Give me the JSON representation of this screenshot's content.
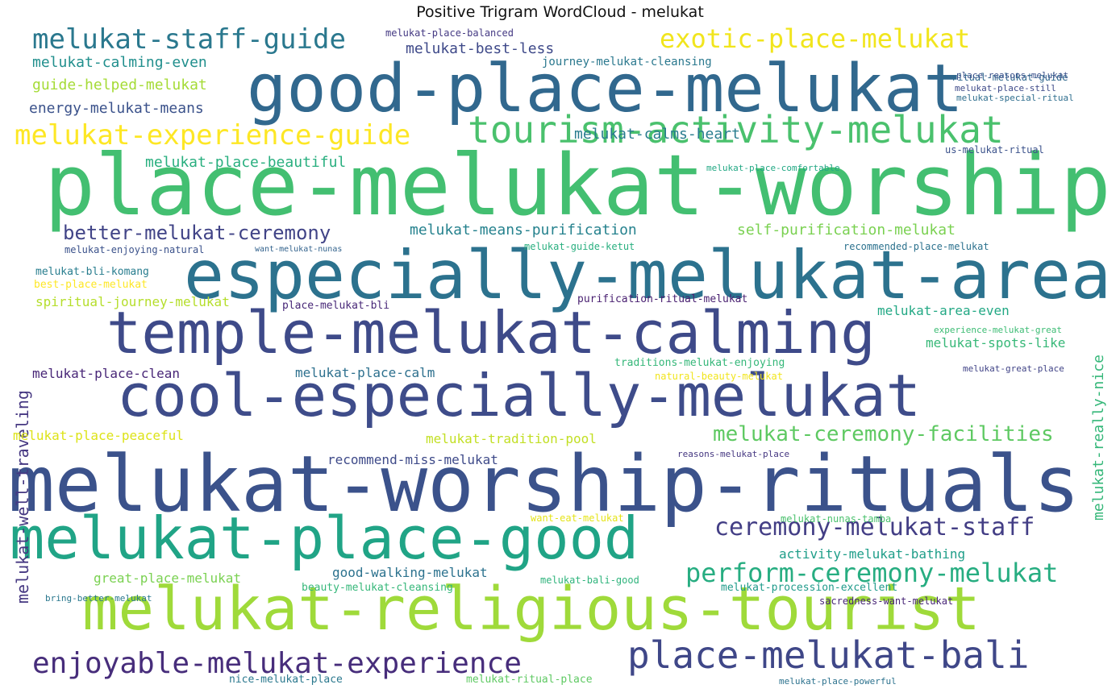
{
  "title": "Positive Trigram WordCloud - melukat",
  "words": [
    {
      "text": "place-melukat-worship",
      "color": "#43bf71"
    },
    {
      "text": "melukat-worship-rituals",
      "color": "#3b528b"
    },
    {
      "text": "especially-melukat-area",
      "color": "#2c728e"
    },
    {
      "text": "good-place-melukat",
      "color": "#31688e"
    },
    {
      "text": "melukat-religious-tourist",
      "color": "#9fda3a"
    },
    {
      "text": "temple-melukat-calming",
      "color": "#3e4a89"
    },
    {
      "text": "cool-especially-melukat",
      "color": "#3e4c8a"
    },
    {
      "text": "melukat-place-good",
      "color": "#20a486"
    },
    {
      "text": "tourism-activity-melukat",
      "color": "#4ac16d"
    },
    {
      "text": "place-melukat-bali",
      "color": "#3f4788"
    },
    {
      "text": "enjoyable-melukat-experience",
      "color": "#472d7b"
    },
    {
      "text": "melukat-experience-guide",
      "color": "#fde725"
    },
    {
      "text": "melukat-staff-guide",
      "color": "#2a788e"
    },
    {
      "text": "exotic-place-melukat",
      "color": "#f1e51d"
    },
    {
      "text": "perform-ceremony-melukat",
      "color": "#27ad81"
    },
    {
      "text": "ceremony-melukat-staff",
      "color": "#433e85"
    },
    {
      "text": "melukat-ceremony-facilities",
      "color": "#5ec962"
    },
    {
      "text": "better-melukat-ceremony",
      "color": "#414487"
    },
    {
      "text": "melukat-well-traveling",
      "color": "#453781"
    },
    {
      "text": "melukat-really-nice",
      "color": "#35b779"
    },
    {
      "text": "melukat-calming-even",
      "color": "#218f8d"
    },
    {
      "text": "guide-helped-melukat",
      "color": "#a5db36"
    },
    {
      "text": "energy-melukat-means",
      "color": "#3b528b"
    },
    {
      "text": "melukat-best-less",
      "color": "#3e4989"
    },
    {
      "text": "melukat-calms-heart",
      "color": "#287c8e"
    },
    {
      "text": "melukat-place-beautiful",
      "color": "#29af7f"
    },
    {
      "text": "melukat-means-purification",
      "color": "#26828e"
    },
    {
      "text": "self-purification-melukat",
      "color": "#7ad151"
    },
    {
      "text": "spiritual-journey-melukat",
      "color": "#b5de2b"
    },
    {
      "text": "melukat-place-clean",
      "color": "#482677"
    },
    {
      "text": "melukat-place-calm",
      "color": "#2d708e"
    },
    {
      "text": "melukat-area-even",
      "color": "#22a884"
    },
    {
      "text": "melukat-spots-like",
      "color": "#37b878"
    },
    {
      "text": "melukat-place-peaceful",
      "color": "#dde318"
    },
    {
      "text": "melukat-tradition-pool",
      "color": "#c2df23"
    },
    {
      "text": "recommend-miss-melukat",
      "color": "#3e4a89"
    },
    {
      "text": "activity-melukat-bathing",
      "color": "#1f9e89"
    },
    {
      "text": "great-place-melukat",
      "color": "#7ad151"
    },
    {
      "text": "good-walking-melukat",
      "color": "#2c728e"
    },
    {
      "text": "journey-melukat-cleansing",
      "color": "#2a788e"
    },
    {
      "text": "melukat-place-balanced",
      "color": "#443983"
    },
    {
      "text": "ritual-melukat-guide",
      "color": "#31688e"
    },
    {
      "text": "place-reasons-melukat",
      "color": "#3b528b"
    },
    {
      "text": "melukat-place-still",
      "color": "#3e4a89"
    },
    {
      "text": "melukat-special-ritual",
      "color": "#2e6e8e"
    },
    {
      "text": "us-melukat-ritual",
      "color": "#3b528b"
    },
    {
      "text": "melukat-place-comfortable",
      "color": "#22a884"
    },
    {
      "text": "melukat-enjoying-natural",
      "color": "#3b528b"
    },
    {
      "text": "want-melukat-nunas",
      "color": "#33638d"
    },
    {
      "text": "melukat-guide-ketut",
      "color": "#29af7f"
    },
    {
      "text": "recommended-place-melukat",
      "color": "#2c728e"
    },
    {
      "text": "melukat-bli-komang",
      "color": "#287d8e"
    },
    {
      "text": "best-place-melukat",
      "color": "#fde725"
    },
    {
      "text": "place-melukat-bli",
      "color": "#482878"
    },
    {
      "text": "purification-ritual-melukat",
      "color": "#481f70"
    },
    {
      "text": "experience-melukat-great",
      "color": "#3dbc74"
    },
    {
      "text": "traditions-melukat-enjoying",
      "color": "#35b779"
    },
    {
      "text": "natural-beauty-melukat",
      "color": "#f1e51d"
    },
    {
      "text": "melukat-great-place",
      "color": "#414487"
    },
    {
      "text": "reasons-melukat-place",
      "color": "#453781"
    },
    {
      "text": "want-eat-melukat",
      "color": "#e5e419"
    },
    {
      "text": "melukat-nunas-tamba",
      "color": "#4ac16d"
    },
    {
      "text": "melukat-bali-good",
      "color": "#2fb47c"
    },
    {
      "text": "bring-better-melukat",
      "color": "#2a788e"
    },
    {
      "text": "beauty-melukat-cleansing",
      "color": "#35b779"
    },
    {
      "text": "melukat-procession-excellent",
      "color": "#1f9a8a"
    },
    {
      "text": "sacredness-want-melukat",
      "color": "#482677"
    },
    {
      "text": "nice-melukat-place",
      "color": "#2a788e"
    },
    {
      "text": "melukat-ritual-place",
      "color": "#5ec962"
    },
    {
      "text": "melukat-place-powerful",
      "color": "#2c728e"
    }
  ]
}
